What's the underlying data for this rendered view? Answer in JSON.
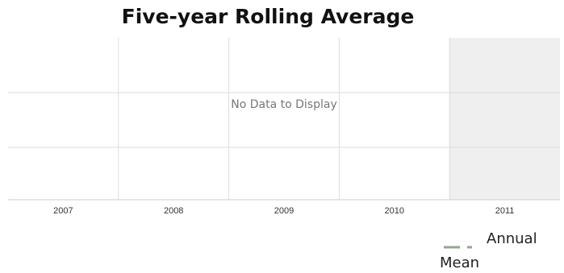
{
  "chart_data": {
    "type": "line",
    "title": "Five-year Rolling Average",
    "annotation": "No Data to Display",
    "categories": [
      "2007",
      "2008",
      "2009",
      "2010",
      "2011"
    ],
    "series": [
      {
        "name": "Annual Mean",
        "color": "#8fa88f",
        "values": [
          null,
          null,
          null,
          null,
          null
        ]
      }
    ],
    "grid": true
  }
}
